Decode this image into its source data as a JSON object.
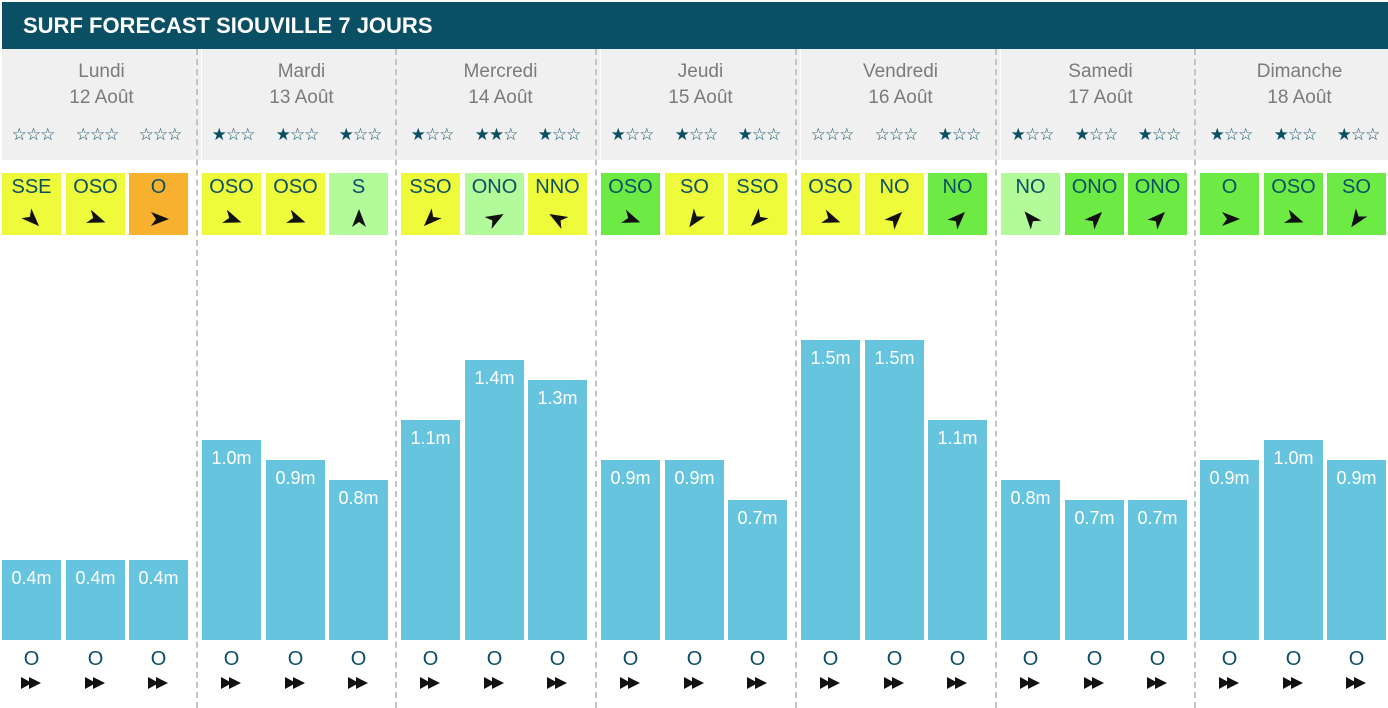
{
  "header": {
    "title": "SURF FORECAST SIOUVILLE 7 JOURS"
  },
  "colors": {
    "header_bg": "#0b4f65",
    "bar": "#66c4df",
    "wind_yellow": "#eefb3a",
    "wind_orange": "#f8b02f",
    "wind_light_green": "#b2fa9a",
    "wind_green": "#6eea45",
    "star": "#0b4f65"
  },
  "chart_data": {
    "type": "bar",
    "title": "SURF FORECAST SIOUVILLE 7 JOURS",
    "unit": "m",
    "days": [
      {
        "name": "Lundi",
        "date": "12 Août",
        "stars": [
          0,
          0,
          0
        ],
        "wind": [
          {
            "dir": "SSE",
            "angle": 135,
            "color": "#eefb3a"
          },
          {
            "dir": "OSO",
            "angle": 110,
            "color": "#eefb3a"
          },
          {
            "dir": "O",
            "angle": 90,
            "color": "#f8b02f"
          }
        ],
        "waves": [
          0.4,
          0.4,
          0.4
        ],
        "labels": [
          "0.4m",
          "0.4m",
          "0.4m"
        ],
        "swell": [
          "O",
          "O",
          "O"
        ]
      },
      {
        "name": "Mardi",
        "date": "13 Août",
        "stars": [
          1,
          1,
          1
        ],
        "wind": [
          {
            "dir": "OSO",
            "angle": 110,
            "color": "#eefb3a"
          },
          {
            "dir": "OSO",
            "angle": 110,
            "color": "#eefb3a"
          },
          {
            "dir": "S",
            "angle": 0,
            "color": "#b2fa9a"
          }
        ],
        "waves": [
          1.0,
          0.9,
          0.8
        ],
        "labels": [
          "1.0m",
          "0.9m",
          "0.8m"
        ],
        "swell": [
          "O",
          "O",
          "O"
        ]
      },
      {
        "name": "Mercredi",
        "date": "14 Août",
        "stars": [
          1,
          2,
          1
        ],
        "wind": [
          {
            "dir": "SSO",
            "angle": 225,
            "color": "#eefb3a"
          },
          {
            "dir": "ONO",
            "angle": 60,
            "color": "#b2fa9a"
          },
          {
            "dir": "NNO",
            "angle": 300,
            "color": "#eefb3a"
          }
        ],
        "waves": [
          1.1,
          1.4,
          1.3
        ],
        "labels": [
          "1.1m",
          "1.4m",
          "1.3m"
        ],
        "swell": [
          "O",
          "O",
          "O"
        ]
      },
      {
        "name": "Jeudi",
        "date": "15 Août",
        "stars": [
          1,
          1,
          1
        ],
        "wind": [
          {
            "dir": "OSO",
            "angle": 110,
            "color": "#6eea45"
          },
          {
            "dir": "SO",
            "angle": 215,
            "color": "#eefb3a"
          },
          {
            "dir": "SSO",
            "angle": 225,
            "color": "#eefb3a"
          }
        ],
        "waves": [
          0.9,
          0.9,
          0.7
        ],
        "labels": [
          "0.9m",
          "0.9m",
          "0.7m"
        ],
        "swell": [
          "O",
          "O",
          "O"
        ]
      },
      {
        "name": "Vendredi",
        "date": "16 Août",
        "stars": [
          0,
          0,
          1
        ],
        "wind": [
          {
            "dir": "OSO",
            "angle": 110,
            "color": "#eefb3a"
          },
          {
            "dir": "NO",
            "angle": 45,
            "color": "#eefb3a"
          },
          {
            "dir": "NO",
            "angle": 45,
            "color": "#6eea45"
          }
        ],
        "waves": [
          1.5,
          1.5,
          1.1
        ],
        "labels": [
          "1.5m",
          "1.5m",
          "1.1m"
        ],
        "swell": [
          "O",
          "O",
          "O"
        ]
      },
      {
        "name": "Samedi",
        "date": "17 Août",
        "stars": [
          1,
          1,
          1
        ],
        "wind": [
          {
            "dir": "NO",
            "angle": 320,
            "color": "#b2fa9a"
          },
          {
            "dir": "ONO",
            "angle": 45,
            "color": "#6eea45"
          },
          {
            "dir": "ONO",
            "angle": 45,
            "color": "#6eea45"
          }
        ],
        "waves": [
          0.8,
          0.7,
          0.7
        ],
        "labels": [
          "0.8m",
          "0.7m",
          "0.7m"
        ],
        "swell": [
          "O",
          "O",
          "O"
        ]
      },
      {
        "name": "Dimanche",
        "date": "18 Août",
        "stars": [
          1,
          1,
          1
        ],
        "wind": [
          {
            "dir": "O",
            "angle": 90,
            "color": "#6eea45"
          },
          {
            "dir": "OSO",
            "angle": 110,
            "color": "#6eea45"
          },
          {
            "dir": "SO",
            "angle": 215,
            "color": "#6eea45"
          }
        ],
        "waves": [
          0.9,
          1.0,
          0.9
        ],
        "labels": [
          "0.9m",
          "1.0m",
          "0.9m"
        ],
        "swell": [
          "O",
          "O",
          "O"
        ]
      }
    ]
  }
}
